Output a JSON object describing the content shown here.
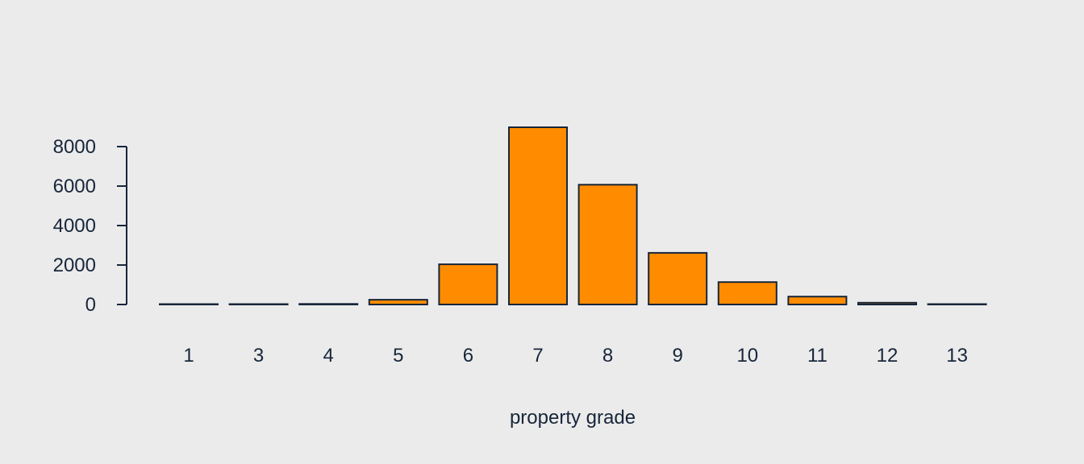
{
  "colors": {
    "background": "#ebebeb",
    "bar_fill": "#ff8c00",
    "bar_stroke": "#17263a",
    "axis": "#17263a",
    "text": "#17263a"
  },
  "chart_data": {
    "type": "bar",
    "title": "",
    "xlabel": "property grade",
    "ylabel": "",
    "categories": [
      "1",
      "3",
      "4",
      "5",
      "6",
      "7",
      "8",
      "9",
      "10",
      "11",
      "12",
      "13"
    ],
    "values": [
      1,
      3,
      29,
      242,
      2038,
      8981,
      6068,
      2615,
      1134,
      399,
      90,
      13
    ],
    "ylim": [
      0,
      8981
    ],
    "yticks": [
      0,
      2000,
      4000,
      6000,
      8000
    ],
    "ytick_labels": [
      "0",
      "2000",
      "4000",
      "6000",
      "8000"
    ],
    "grid": false,
    "legend": "none"
  }
}
